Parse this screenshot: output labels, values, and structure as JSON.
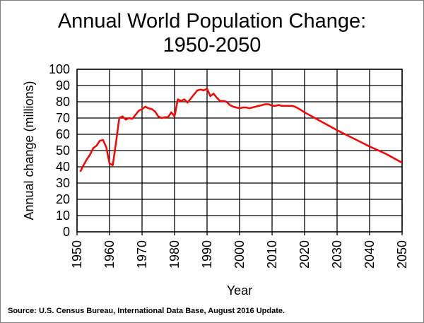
{
  "chart_data": {
    "type": "line",
    "title_lines": [
      "Annual World Population Change:",
      "1950-2050"
    ],
    "xlabel": "Year",
    "ylabel": "Annual change  (millions)",
    "xlim": [
      1950,
      2050
    ],
    "ylim": [
      0,
      100
    ],
    "xticks": [
      1950,
      1960,
      1970,
      1980,
      1990,
      2000,
      2010,
      2020,
      2030,
      2040,
      2050
    ],
    "yticks": [
      0,
      10,
      20,
      30,
      40,
      50,
      60,
      70,
      80,
      90,
      100
    ],
    "grid": true,
    "line_color": "#ff0000",
    "series": [
      {
        "x": [
          1951,
          1952,
          1953,
          1954,
          1955,
          1956,
          1957,
          1958,
          1959,
          1960,
          1961,
          1962,
          1963,
          1964,
          1965,
          1966,
          1967,
          1968,
          1969,
          1970,
          1971,
          1972,
          1973,
          1974,
          1975,
          1976,
          1977,
          1978,
          1979,
          1980,
          1981,
          1982,
          1983,
          1984,
          1985,
          1986,
          1987,
          1988,
          1989,
          1990,
          1991,
          1992,
          1993,
          1994,
          1995,
          1996,
          1997,
          1998,
          1999,
          2000,
          2001,
          2002,
          2003,
          2004,
          2005,
          2006,
          2007,
          2008,
          2009,
          2010,
          2011,
          2012,
          2013,
          2014,
          2015,
          2016,
          2017,
          2018,
          2020,
          2025,
          2030,
          2035,
          2040,
          2045,
          2050
        ],
        "y": [
          37,
          41,
          44.5,
          47.5,
          51.5,
          53,
          56,
          56.5,
          52,
          42,
          41,
          55,
          70,
          71,
          69,
          70,
          69.5,
          72,
          74.5,
          75.5,
          77,
          76,
          75.5,
          74,
          71,
          70,
          70.5,
          70.5,
          73.5,
          71,
          81.5,
          80.5,
          81.5,
          79.5,
          82,
          84.5,
          87,
          87.5,
          87,
          88,
          83.5,
          85,
          82.5,
          80.5,
          80.5,
          80,
          78,
          77,
          76.5,
          76,
          76.5,
          76.5,
          76,
          76.5,
          77,
          77.5,
          78,
          78.5,
          78.5,
          77.5,
          77.5,
          78,
          77.5,
          77.5,
          77.5,
          77.5,
          77,
          76,
          73.5,
          68,
          62.5,
          57.5,
          52.5,
          48,
          42.5
        ]
      }
    ]
  },
  "source": "Source: U.S. Census Bureau, International Data Base, August 2016 Update."
}
